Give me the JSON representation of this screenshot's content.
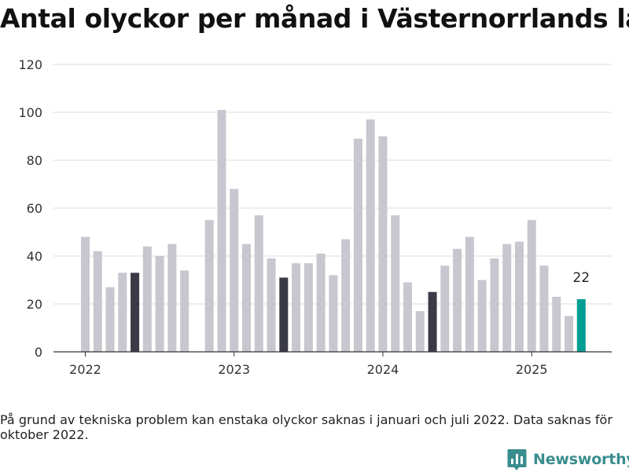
{
  "title": "Antal olyckor per månad i Västernorrlands län",
  "footnote": "På grund av tekniska problem kan enstaka olyckor saknas i januari och juli 2022. Data saknas för oktober 2022.",
  "brand": {
    "name": "Newsworthy",
    "icon": "newsworthy-logo-icon",
    "color": "#3a8d8e"
  },
  "chart_data": {
    "type": "bar",
    "title": "Antal olyckor per månad i Västernorrlands län",
    "xlabel": "",
    "ylabel": "",
    "ylim": [
      0,
      120
    ],
    "yticks": [
      0,
      20,
      40,
      60,
      80,
      100,
      120
    ],
    "xticks": [
      {
        "label": "2022",
        "month": 0
      },
      {
        "label": "2023",
        "month": 12
      },
      {
        "label": "2024",
        "month": 24
      },
      {
        "label": "2025",
        "month": 36
      }
    ],
    "grid": true,
    "colors": {
      "default": "#c8c7cf",
      "highlight": "#3b3a47",
      "latest": "#009e93"
    },
    "start": "2022-01",
    "months": [
      "2022-01",
      "2022-02",
      "2022-03",
      "2022-04",
      "2022-05",
      "2022-06",
      "2022-07",
      "2022-08",
      "2022-09",
      "2022-10",
      "2022-11",
      "2022-12",
      "2023-01",
      "2023-02",
      "2023-03",
      "2023-04",
      "2023-05",
      "2023-06",
      "2023-07",
      "2023-08",
      "2023-09",
      "2023-10",
      "2023-11",
      "2023-12",
      "2024-01",
      "2024-02",
      "2024-03",
      "2024-04",
      "2024-05",
      "2024-06",
      "2024-07",
      "2024-08",
      "2024-09",
      "2024-10",
      "2024-11",
      "2024-12",
      "2025-01",
      "2025-02",
      "2025-03",
      "2025-04",
      "2025-05"
    ],
    "values": [
      48,
      42,
      27,
      33,
      33,
      44,
      40,
      45,
      34,
      null,
      55,
      101,
      68,
      45,
      57,
      39,
      31,
      37,
      37,
      41,
      32,
      47,
      89,
      97,
      90,
      57,
      29,
      17,
      25,
      36,
      43,
      48,
      30,
      39,
      45,
      46,
      55,
      36,
      23,
      15,
      22
    ],
    "highlight": [
      "2022-05",
      "2023-05",
      "2024-05"
    ],
    "latest": "2025-05",
    "annotations": [
      {
        "month": "2025-05",
        "text": "22"
      }
    ]
  }
}
